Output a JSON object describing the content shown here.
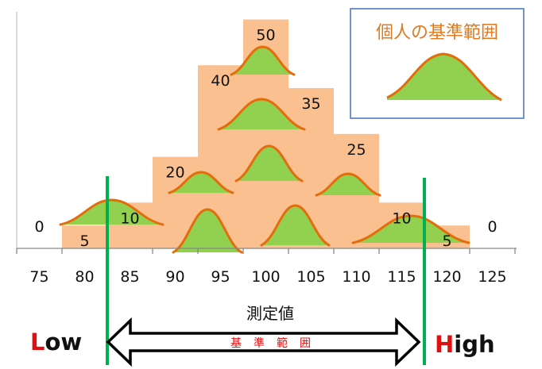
{
  "chart_data": {
    "type": "bar",
    "categories": [
      "75",
      "80",
      "85",
      "90",
      "95",
      "100",
      "105",
      "110",
      "115",
      "120",
      "125"
    ],
    "values": [
      0,
      5,
      10,
      20,
      40,
      50,
      35,
      25,
      10,
      5,
      0
    ],
    "data_labels": [
      "0",
      "5",
      "10",
      "20",
      "40",
      "50",
      "35",
      "25",
      "10",
      "5",
      "0"
    ],
    "title": "",
    "xlabel": "測定値",
    "ylabel": "",
    "ylim": [
      0,
      52
    ],
    "grid": false,
    "colors": {
      "bar": "#fac090",
      "curve_fill": "#92d050",
      "curve_stroke": "#e46c0a",
      "limit_line": "#00b050",
      "accent_red": "#e01010"
    }
  },
  "legend": {
    "title": "個人の基準範囲"
  },
  "markers": {
    "low_first": "L",
    "low_rest": "ow",
    "high_first": "H",
    "high_rest": "igh",
    "low_value": 82.5,
    "high_value": 117.5
  },
  "range_arrow": {
    "label_top": "測定値",
    "label_inner": "基準範囲"
  }
}
